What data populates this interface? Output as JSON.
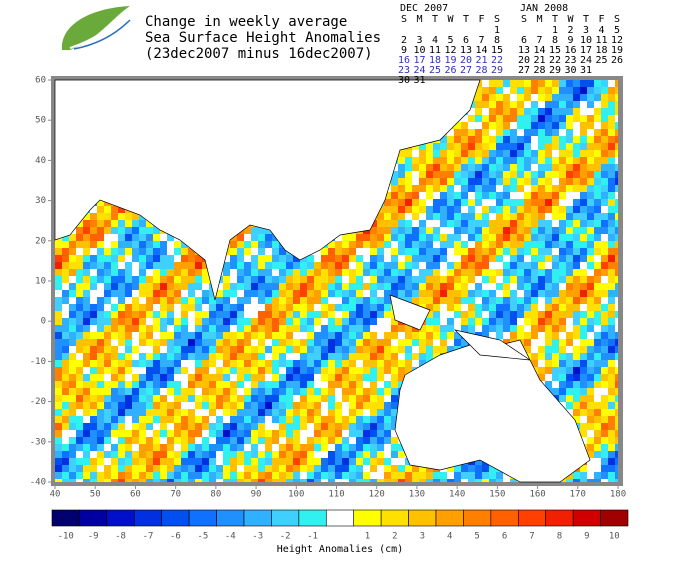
{
  "header": {
    "title_lines": [
      "Change in weekly average",
      "Sea Surface Height Anomalies",
      "(23dec2007 minus 16dec2007)"
    ]
  },
  "calendars": [
    {
      "title": "DEC 2007",
      "weekdays": [
        "S",
        "M",
        "T",
        "W",
        "T",
        "F",
        "S"
      ],
      "weeks": [
        [
          null,
          null,
          null,
          null,
          null,
          null,
          1
        ],
        [
          2,
          3,
          4,
          5,
          6,
          7,
          8
        ],
        [
          9,
          10,
          11,
          12,
          13,
          14,
          15
        ],
        [
          16,
          17,
          18,
          19,
          20,
          21,
          22
        ],
        [
          23,
          24,
          25,
          26,
          27,
          28,
          29
        ],
        [
          30,
          31,
          null,
          null,
          null,
          null,
          null
        ]
      ],
      "highlight_weeks": [
        3,
        4
      ]
    },
    {
      "title": "JAN 2008",
      "weekdays": [
        "S",
        "M",
        "T",
        "W",
        "T",
        "F",
        "S"
      ],
      "weeks": [
        [
          null,
          null,
          1,
          2,
          3,
          4,
          5
        ],
        [
          6,
          7,
          8,
          9,
          10,
          11,
          12
        ],
        [
          13,
          14,
          15,
          16,
          17,
          18,
          19
        ],
        [
          20,
          21,
          22,
          23,
          24,
          25,
          26
        ],
        [
          27,
          28,
          29,
          30,
          31,
          null,
          null
        ]
      ],
      "highlight_weeks": []
    }
  ],
  "map": {
    "xlim": [
      40,
      180
    ],
    "ylim": [
      -40,
      60
    ],
    "xticks": [
      40,
      50,
      60,
      70,
      80,
      90,
      100,
      110,
      120,
      130,
      140,
      150,
      160,
      170,
      180
    ],
    "yticks": [
      60,
      50,
      40,
      30,
      20,
      10,
      0,
      -10,
      -20,
      -30,
      -40
    ]
  },
  "colorbar": {
    "title": "Height Anomalies (cm)",
    "colors": [
      "#00006e",
      "#0000a0",
      "#0010c8",
      "#0030e0",
      "#0050f0",
      "#1070ff",
      "#2090ff",
      "#30b0ff",
      "#40d0ff",
      "#30f0f0",
      "#ffffff",
      "#ffff00",
      "#ffe000",
      "#ffc000",
      "#ffa000",
      "#ff8000",
      "#ff6000",
      "#ff4000",
      "#f02000",
      "#d00000",
      "#a00000"
    ],
    "labels": [
      -10,
      -9,
      -8,
      -7,
      -6,
      -5,
      -4,
      -3,
      -2,
      -1,
      null,
      1,
      2,
      3,
      4,
      5,
      6,
      7,
      8,
      9,
      10
    ]
  }
}
